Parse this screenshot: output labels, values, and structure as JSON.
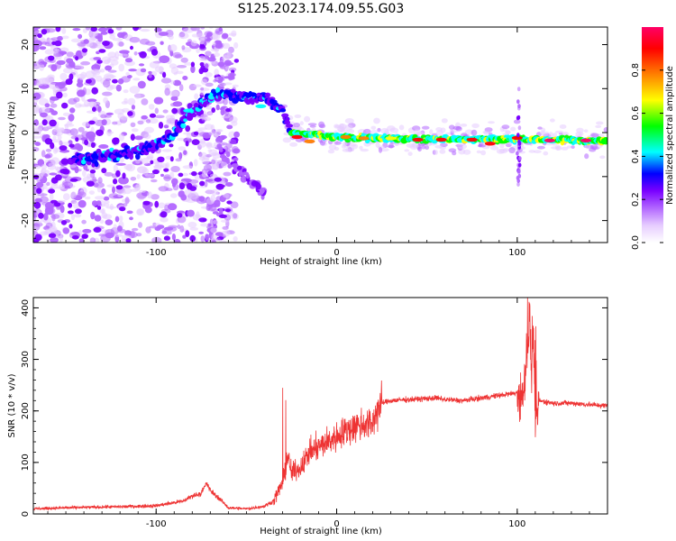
{
  "title": "S125.2023.174.09.55.G03",
  "chart_data": [
    {
      "type": "heatmap",
      "name": "spectrogram",
      "xlabel": "Height of straight line (km)",
      "ylabel": "Frequency (Hz)",
      "xlim": [
        -168,
        150
      ],
      "ylim": [
        -25,
        24
      ],
      "xticks": [
        -100,
        0,
        100
      ],
      "xtick_labels": [
        "-100",
        "0",
        "100"
      ],
      "yticks": [
        -20,
        -10,
        0,
        10,
        20
      ],
      "ytick_labels": [
        "-20",
        "-10",
        "0",
        "10",
        "20"
      ],
      "colorbar": {
        "label": "Normalized spectral amplitude",
        "range": [
          0,
          1
        ],
        "ticks": [
          0.0,
          0.2,
          0.4,
          0.6,
          0.8
        ],
        "tick_labels": [
          "0.0",
          "0.2",
          "0.4",
          "0.6",
          "0.8"
        ],
        "colors": [
          "#ffffff",
          "#e6ccff",
          "#b266ff",
          "#7a00ff",
          "#0000ff",
          "#00ffff",
          "#00ff00",
          "#ffff00",
          "#ff8000",
          "#ff0000",
          "#ff0066"
        ]
      },
      "ridge": {
        "x": [
          -140,
          -120,
          -100,
          -90,
          -80,
          -70,
          -60,
          -50,
          -40,
          -30,
          -25,
          0,
          50,
          100,
          150
        ],
        "y": [
          -6,
          -5,
          -3,
          0,
          5,
          8,
          9,
          8,
          8,
          5,
          0,
          -1,
          -1.5,
          -1.5,
          -1.8
        ]
      }
    },
    {
      "type": "line",
      "name": "snr",
      "xlabel": "Height of straight line (km)",
      "ylabel": "SNR (10 * v/v)",
      "xlim": [
        -168,
        150
      ],
      "ylim": [
        0,
        420
      ],
      "xticks": [
        -100,
        0,
        100
      ],
      "xtick_labels": [
        "-100",
        "0",
        "100"
      ],
      "yticks": [
        0,
        100,
        200,
        300,
        400
      ],
      "ytick_labels": [
        "0",
        "100",
        "200",
        "300",
        "400"
      ],
      "color": "#ee3333",
      "series": [
        {
          "name": "SNR",
          "x": [
            -168,
            -150,
            -120,
            -100,
            -85,
            -80,
            -75,
            -72,
            -70,
            -65,
            -60,
            -50,
            -40,
            -35,
            -30,
            -27,
            -25,
            -20,
            -15,
            -10,
            -5,
            0,
            5,
            10,
            15,
            20,
            22,
            25,
            30,
            40,
            50,
            55,
            60,
            70,
            80,
            90,
            100,
            103,
            105,
            107,
            108,
            109,
            110,
            112,
            120,
            130,
            140,
            150
          ],
          "y": [
            10,
            12,
            14,
            16,
            25,
            35,
            40,
            60,
            45,
            30,
            12,
            10,
            15,
            25,
            60,
            110,
            80,
            90,
            120,
            130,
            140,
            150,
            160,
            170,
            175,
            175,
            200,
            215,
            220,
            222,
            224,
            225,
            222,
            220,
            225,
            230,
            235,
            220,
            300,
            380,
            260,
            360,
            150,
            220,
            215,
            215,
            212,
            210
          ]
        }
      ]
    }
  ]
}
